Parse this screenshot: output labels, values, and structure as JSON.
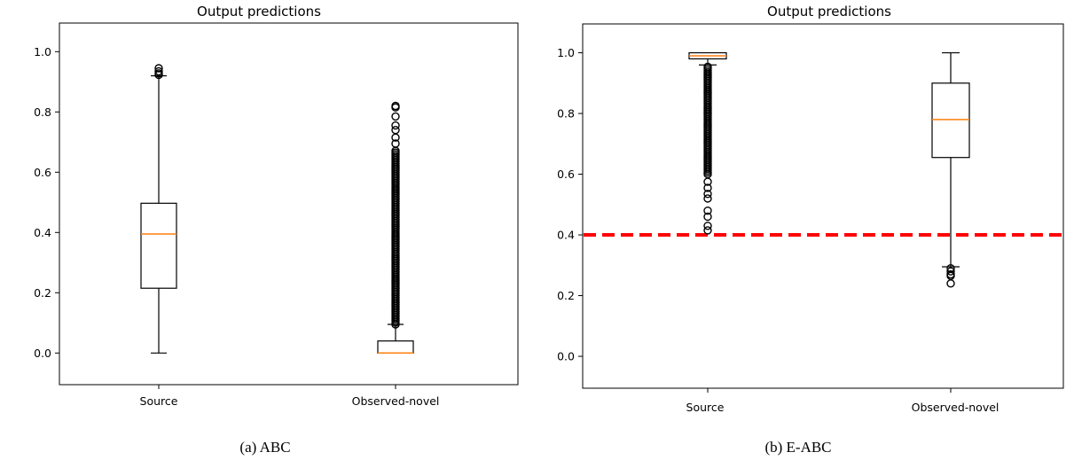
{
  "chart_data": [
    {
      "type": "boxplot",
      "title": "Output predictions",
      "caption": "(a) ABC",
      "categories": [
        "Source",
        "Observed-novel"
      ],
      "ylim": [
        -0.105,
        1.095
      ],
      "yticks": [
        0.0,
        0.2,
        0.4,
        0.6,
        0.8,
        1.0
      ],
      "ytick_labels": [
        "0.0",
        "0.2",
        "0.4",
        "0.6",
        "0.8",
        "1.0"
      ],
      "boxes": [
        {
          "category": "Source",
          "whisker_low": 0.0,
          "q1": 0.215,
          "median": 0.395,
          "q3": 0.497,
          "whisker_high": 0.92,
          "outliers": [
            0.923,
            0.928,
            0.935,
            0.945
          ]
        },
        {
          "category": "Observed-novel",
          "whisker_low": 0.0,
          "q1": 0.0,
          "median": 0.0,
          "q3": 0.04,
          "whisker_high": 0.095,
          "outliers_dense_range": [
            0.095,
            0.675
          ],
          "outliers": [
            0.695,
            0.715,
            0.74,
            0.755,
            0.785,
            0.815,
            0.82
          ]
        }
      ],
      "reference_line": null
    },
    {
      "type": "boxplot",
      "title": "Output predictions",
      "caption": "(b) E-ABC",
      "categories": [
        "Source",
        "Observed-novel"
      ],
      "ylim": [
        -0.105,
        1.095
      ],
      "yticks": [
        0.0,
        0.2,
        0.4,
        0.6,
        0.8,
        1.0
      ],
      "ytick_labels": [
        "0.0",
        "0.2",
        "0.4",
        "0.6",
        "0.8",
        "1.0"
      ],
      "boxes": [
        {
          "category": "Source",
          "whisker_low": 0.96,
          "q1": 0.98,
          "median": 0.99,
          "q3": 1.0,
          "whisker_high": 1.0,
          "outliers_dense_range": [
            0.6,
            0.955
          ],
          "outliers": [
            0.575,
            0.555,
            0.535,
            0.52,
            0.48,
            0.46,
            0.43,
            0.415
          ]
        },
        {
          "category": "Observed-novel",
          "whisker_low": 0.295,
          "q1": 0.655,
          "median": 0.78,
          "q3": 0.9,
          "whisker_high": 1.0,
          "outliers": [
            0.29,
            0.28,
            0.27,
            0.265,
            0.24
          ]
        }
      ],
      "reference_line": {
        "y": 0.4,
        "color": "#ff0000",
        "style": "dashed"
      }
    }
  ],
  "colors": {
    "median": "#ff7f0e",
    "reference": "#ff0000",
    "frame": "#000000"
  }
}
